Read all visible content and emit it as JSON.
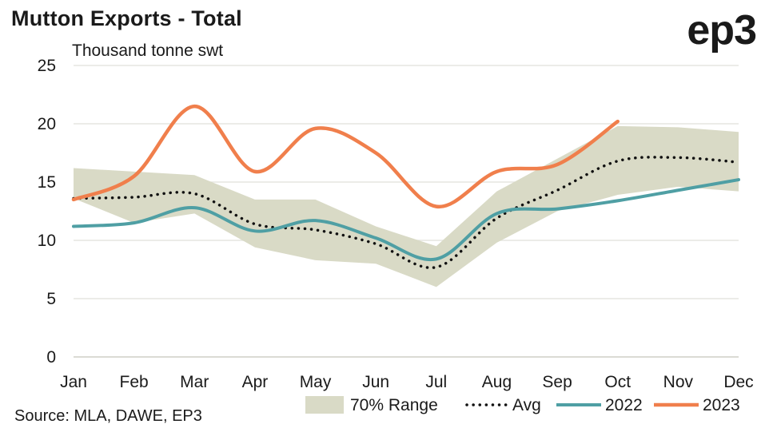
{
  "header": {
    "title": "Mutton Exports - Total",
    "logo_text": "ep3",
    "unit_label": "Thousand tonne swt"
  },
  "footer": {
    "source": "Source: MLA, DAWE, EP3"
  },
  "colors": {
    "range": "#d9dac6",
    "avg": "#111111",
    "y2022": "#4f9fa4",
    "y2023": "#f07f4c",
    "grid": "#e6e6e0"
  },
  "chart_data": {
    "type": "line",
    "categories": [
      "Jan",
      "Feb",
      "Mar",
      "Apr",
      "May",
      "Jun",
      "Jul",
      "Aug",
      "Sep",
      "Oct",
      "Nov",
      "Dec"
    ],
    "ylim": [
      0,
      25
    ],
    "yticks": [
      0,
      5,
      10,
      15,
      20,
      25
    ],
    "grid": true,
    "legend_position": "bottom-right",
    "range_band": {
      "name": "70% Range",
      "upper": [
        16.2,
        15.9,
        15.6,
        13.5,
        13.5,
        11.2,
        9.5,
        14.2,
        17.0,
        19.8,
        19.7,
        19.3
      ],
      "lower": [
        13.6,
        11.5,
        12.3,
        9.4,
        8.3,
        8.0,
        6.0,
        9.8,
        12.5,
        13.9,
        14.6,
        14.2
      ]
    },
    "series": [
      {
        "name": "Avg",
        "values": [
          13.6,
          13.7,
          14.0,
          11.4,
          10.9,
          9.7,
          7.7,
          11.9,
          14.3,
          16.8,
          17.1,
          16.7
        ]
      },
      {
        "name": "2022",
        "values": [
          11.2,
          11.5,
          12.8,
          10.8,
          11.7,
          10.2,
          8.4,
          12.3,
          12.7,
          13.4,
          14.3,
          15.2
        ]
      },
      {
        "name": "2023",
        "values": [
          13.5,
          15.5,
          21.5,
          15.9,
          19.6,
          17.5,
          12.9,
          15.9,
          16.5,
          20.2,
          null,
          null
        ]
      }
    ]
  }
}
